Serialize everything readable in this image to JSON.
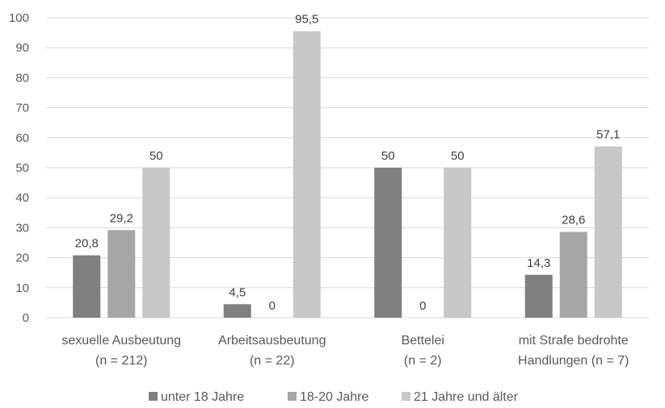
{
  "chart_data": {
    "type": "bar",
    "categories": [
      [
        "sexuelle Ausbeutung",
        "(n = 212)"
      ],
      [
        "Arbeitsausbeutung",
        "(n = 22)"
      ],
      [
        "Bettelei",
        "(n = 2)"
      ],
      [
        "mit Strafe bedrohte",
        "Handlungen (n = 7)"
      ]
    ],
    "series": [
      {
        "name": "unter 18 Jahre",
        "color": "#808080",
        "values": [
          20.8,
          4.5,
          50,
          14.3
        ],
        "labels": [
          "20,8",
          "4,5",
          "50",
          "14,3"
        ]
      },
      {
        "name": "18-20 Jahre",
        "color": "#a6a6a6",
        "values": [
          29.2,
          0,
          0,
          28.6
        ],
        "labels": [
          "29,2",
          "0",
          "0",
          "28,6"
        ]
      },
      {
        "name": "21 Jahre und älter",
        "color": "#c8c8c8",
        "values": [
          50,
          95.5,
          50,
          57.1
        ],
        "labels": [
          "50",
          "95,5",
          "50",
          "57,1"
        ]
      }
    ],
    "ylim": [
      0,
      100
    ],
    "yticks": [
      0,
      10,
      20,
      30,
      40,
      50,
      60,
      70,
      80,
      90,
      100
    ],
    "grid": true,
    "legend": "bottom",
    "gridline_color": "#d9d9d9"
  }
}
